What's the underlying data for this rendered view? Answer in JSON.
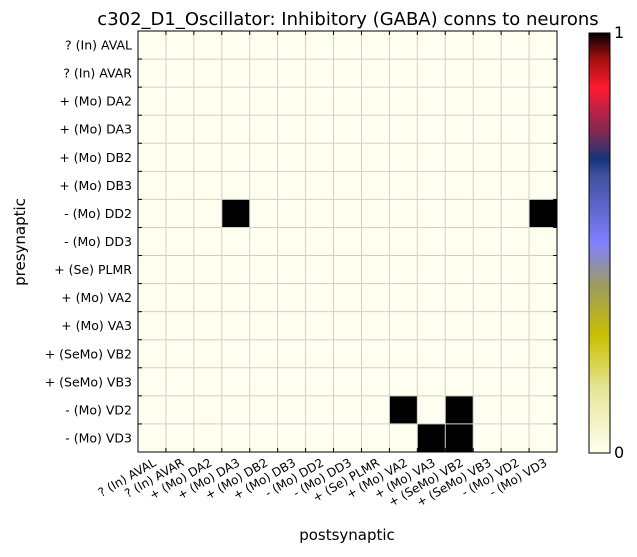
{
  "chart_data": {
    "type": "heatmap",
    "title": "c302_D1_Oscillator: Inhibitory (GABA) conns to neurons",
    "xlabel": "postsynaptic",
    "ylabel": "presynaptic",
    "row_labels": [
      "? (In) AVAL",
      "? (In) AVAR",
      "+ (Mo) DA2",
      "+ (Mo) DA3",
      "+ (Mo) DB2",
      "+ (Mo) DB3",
      "- (Mo) DD2",
      "- (Mo) DD3",
      "+ (Se) PLMR",
      "+ (Mo) VA2",
      "+ (Mo) VA3",
      "+ (SeMo) VB2",
      "+ (SeMo) VB3",
      "- (Mo) VD2",
      "- (Mo) VD3"
    ],
    "col_labels": [
      "? (In) AVAL",
      "? (In) AVAR",
      "+ (Mo) DA2",
      "+ (Mo) DA3",
      "+ (Mo) DB2",
      "+ (Mo) DB3",
      "- (Mo) DD2",
      "- (Mo) DD3",
      "+ (Se) PLMR",
      "+ (Mo) VA2",
      "+ (Mo) VA3",
      "+ (SeMo) VB2",
      "+ (SeMo) VB3",
      "- (Mo) VD2",
      "- (Mo) VD3"
    ],
    "values": [
      [
        0,
        0,
        0,
        0,
        0,
        0,
        0,
        0,
        0,
        0,
        0,
        0,
        0,
        0,
        0
      ],
      [
        0,
        0,
        0,
        0,
        0,
        0,
        0,
        0,
        0,
        0,
        0,
        0,
        0,
        0,
        0
      ],
      [
        0,
        0,
        0,
        0,
        0,
        0,
        0,
        0,
        0,
        0,
        0,
        0,
        0,
        0,
        0
      ],
      [
        0,
        0,
        0,
        0,
        0,
        0,
        0,
        0,
        0,
        0,
        0,
        0,
        0,
        0,
        0
      ],
      [
        0,
        0,
        0,
        0,
        0,
        0,
        0,
        0,
        0,
        0,
        0,
        0,
        0,
        0,
        0
      ],
      [
        0,
        0,
        0,
        0,
        0,
        0,
        0,
        0,
        0,
        0,
        0,
        0,
        0,
        0,
        0
      ],
      [
        0,
        0,
        0,
        1,
        0,
        0,
        0,
        0,
        0,
        0,
        0,
        0,
        0,
        0,
        1
      ],
      [
        0,
        0,
        0,
        0,
        0,
        0,
        0,
        0,
        0,
        0,
        0,
        0,
        0,
        0,
        0
      ],
      [
        0,
        0,
        0,
        0,
        0,
        0,
        0,
        0,
        0,
        0,
        0,
        0,
        0,
        0,
        0
      ],
      [
        0,
        0,
        0,
        0,
        0,
        0,
        0,
        0,
        0,
        0,
        0,
        0,
        0,
        0,
        0
      ],
      [
        0,
        0,
        0,
        0,
        0,
        0,
        0,
        0,
        0,
        0,
        0,
        0,
        0,
        0,
        0
      ],
      [
        0,
        0,
        0,
        0,
        0,
        0,
        0,
        0,
        0,
        0,
        0,
        0,
        0,
        0,
        0
      ],
      [
        0,
        0,
        0,
        0,
        0,
        0,
        0,
        0,
        0,
        0,
        0,
        0,
        0,
        0,
        0
      ],
      [
        0,
        0,
        0,
        0,
        0,
        0,
        0,
        0,
        0,
        1,
        0,
        1,
        0,
        0,
        0
      ],
      [
        0,
        0,
        0,
        0,
        0,
        0,
        0,
        0,
        0,
        0,
        1,
        1,
        0,
        0,
        0
      ]
    ],
    "colorbar": {
      "min": 0,
      "max": 1,
      "min_label": "0",
      "max_label": "1",
      "colormap": "gist_stern_r",
      "stops": [
        {
          "v": 0.0,
          "c": "#fffff0"
        },
        {
          "v": 0.15,
          "c": "#e6e699"
        },
        {
          "v": 0.28,
          "c": "#c8c000"
        },
        {
          "v": 0.4,
          "c": "#9c9c60"
        },
        {
          "v": 0.5,
          "c": "#8080ff"
        },
        {
          "v": 0.66,
          "c": "#4050a0"
        },
        {
          "v": 0.7,
          "c": "#15357a"
        },
        {
          "v": 0.76,
          "c": "#7a2a55"
        },
        {
          "v": 0.87,
          "c": "#ff1a30"
        },
        {
          "v": 0.94,
          "c": "#a01010"
        },
        {
          "v": 1.0,
          "c": "#000000"
        }
      ]
    },
    "grid": true
  }
}
